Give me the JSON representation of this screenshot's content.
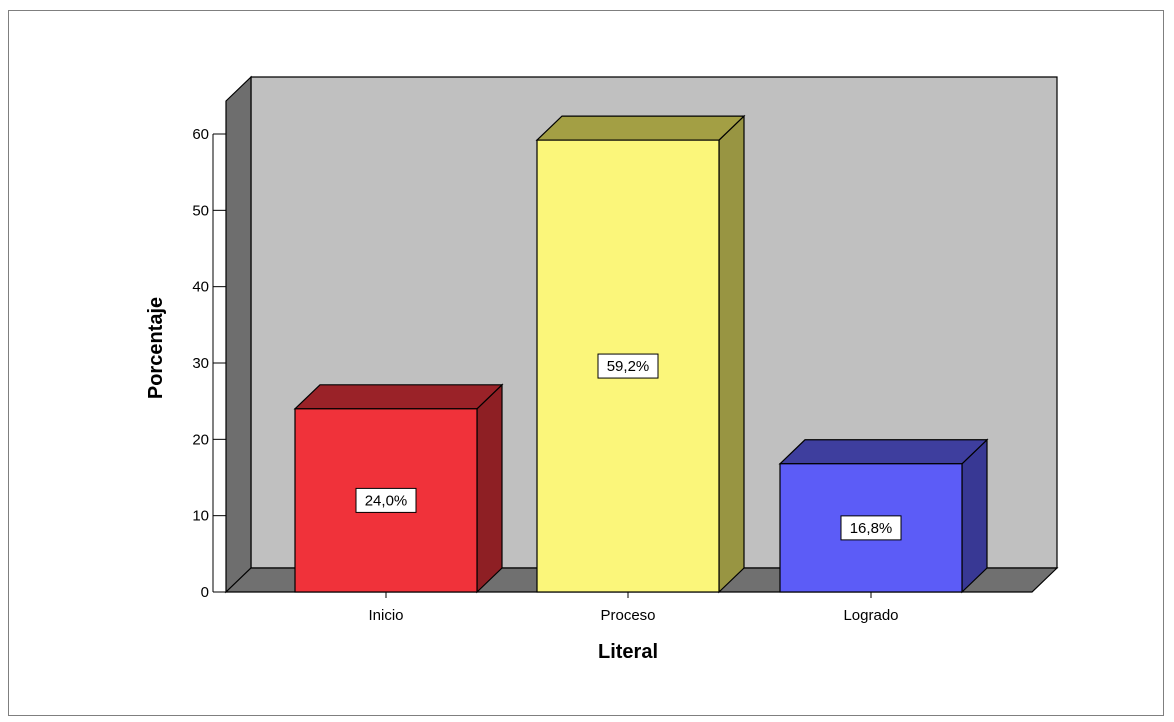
{
  "chart_data": {
    "type": "bar",
    "categories": [
      "Inicio",
      "Proceso",
      "Logrado"
    ],
    "values": [
      24.0,
      59.2,
      16.8
    ],
    "data_labels": [
      "24,0%",
      "59,2%",
      "16,8%"
    ],
    "colors": [
      "#f0323a",
      "#fbf67a",
      "#5c5cf7"
    ],
    "side_colors": [
      "#8e1f24",
      "#989542",
      "#383894"
    ],
    "top_colors": [
      "#9a2228",
      "#a39f44",
      "#3e3e9e"
    ],
    "title": "",
    "xlabel": "Literal",
    "ylabel": "Porcentaje",
    "ylim": [
      0,
      60
    ],
    "yticks": [
      0,
      10,
      20,
      30,
      40,
      50,
      60
    ],
    "grid": false,
    "style": "3d"
  }
}
